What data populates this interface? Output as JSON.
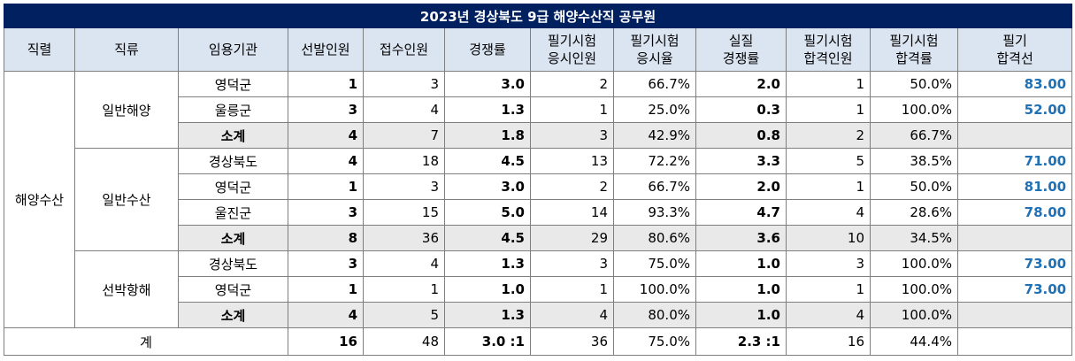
{
  "title": "2023년 경상북도 9급 해양수산직 공무원",
  "headers": [
    [
      "직렬"
    ],
    [
      "직류"
    ],
    [
      "임용기관"
    ],
    [
      "선발인원"
    ],
    [
      "접수인원"
    ],
    [
      "경쟁률"
    ],
    [
      "필기시험",
      "응시인원"
    ],
    [
      "필기시험",
      "응시율"
    ],
    [
      "실질",
      "경쟁률"
    ],
    [
      "필기시험",
      "합격인원"
    ],
    [
      "필기시험",
      "합격률"
    ],
    [
      "필기",
      "합격선"
    ]
  ],
  "series_name": "해양수산",
  "groups": [
    {
      "name": "일반해양",
      "rows": [
        {
          "agency": "영덕군",
          "quota": "1",
          "applicants": "3",
          "ratio": "3.0",
          "takers": "2",
          "take_rate": "66.7%",
          "real_ratio": "2.0",
          "passers": "1",
          "pass_rate": "50.0%",
          "cutoff": "83.00"
        },
        {
          "agency": "울릉군",
          "quota": "3",
          "applicants": "4",
          "ratio": "1.3",
          "takers": "1",
          "take_rate": "25.0%",
          "real_ratio": "0.3",
          "passers": "1",
          "pass_rate": "100.0%",
          "cutoff": "52.00"
        }
      ],
      "subtotal": {
        "agency": "소계",
        "quota": "4",
        "applicants": "7",
        "ratio": "1.8",
        "takers": "3",
        "take_rate": "42.9%",
        "real_ratio": "0.8",
        "passers": "2",
        "pass_rate": "66.7%",
        "cutoff": ""
      }
    },
    {
      "name": "일반수산",
      "rows": [
        {
          "agency": "경상북도",
          "quota": "4",
          "applicants": "18",
          "ratio": "4.5",
          "takers": "13",
          "take_rate": "72.2%",
          "real_ratio": "3.3",
          "passers": "5",
          "pass_rate": "38.5%",
          "cutoff": "71.00"
        },
        {
          "agency": "영덕군",
          "quota": "1",
          "applicants": "3",
          "ratio": "3.0",
          "takers": "2",
          "take_rate": "66.7%",
          "real_ratio": "2.0",
          "passers": "1",
          "pass_rate": "50.0%",
          "cutoff": "81.00"
        },
        {
          "agency": "울진군",
          "quota": "3",
          "applicants": "15",
          "ratio": "5.0",
          "takers": "14",
          "take_rate": "93.3%",
          "real_ratio": "4.7",
          "passers": "4",
          "pass_rate": "28.6%",
          "cutoff": "78.00"
        }
      ],
      "subtotal": {
        "agency": "소계",
        "quota": "8",
        "applicants": "36",
        "ratio": "4.5",
        "takers": "29",
        "take_rate": "80.6%",
        "real_ratio": "3.6",
        "passers": "10",
        "pass_rate": "34.5%",
        "cutoff": ""
      }
    },
    {
      "name": "선박항해",
      "rows": [
        {
          "agency": "경상북도",
          "quota": "3",
          "applicants": "4",
          "ratio": "1.3",
          "takers": "3",
          "take_rate": "75.0%",
          "real_ratio": "1.0",
          "passers": "3",
          "pass_rate": "100.0%",
          "cutoff": "73.00"
        },
        {
          "agency": "영덕군",
          "quota": "1",
          "applicants": "1",
          "ratio": "1.0",
          "takers": "1",
          "take_rate": "100.0%",
          "real_ratio": "1.0",
          "passers": "1",
          "pass_rate": "100.0%",
          "cutoff": "73.00"
        }
      ],
      "subtotal": {
        "agency": "소계",
        "quota": "4",
        "applicants": "5",
        "ratio": "1.3",
        "takers": "4",
        "take_rate": "80.0%",
        "real_ratio": "1.0",
        "passers": "4",
        "pass_rate": "100.0%",
        "cutoff": ""
      }
    }
  ],
  "total": {
    "label": "계",
    "quota": "16",
    "applicants": "48",
    "ratio": "3.0 :1",
    "takers": "36",
    "take_rate": "75.0%",
    "real_ratio": "2.3 :1",
    "passers": "16",
    "pass_rate": "44.4%",
    "cutoff": ""
  },
  "colors": {
    "title_bg": "#002060",
    "header_bg": "#dbe5f1",
    "subtotal_bg": "#e9e9e9",
    "cutoff_text": "#1f70b5"
  }
}
